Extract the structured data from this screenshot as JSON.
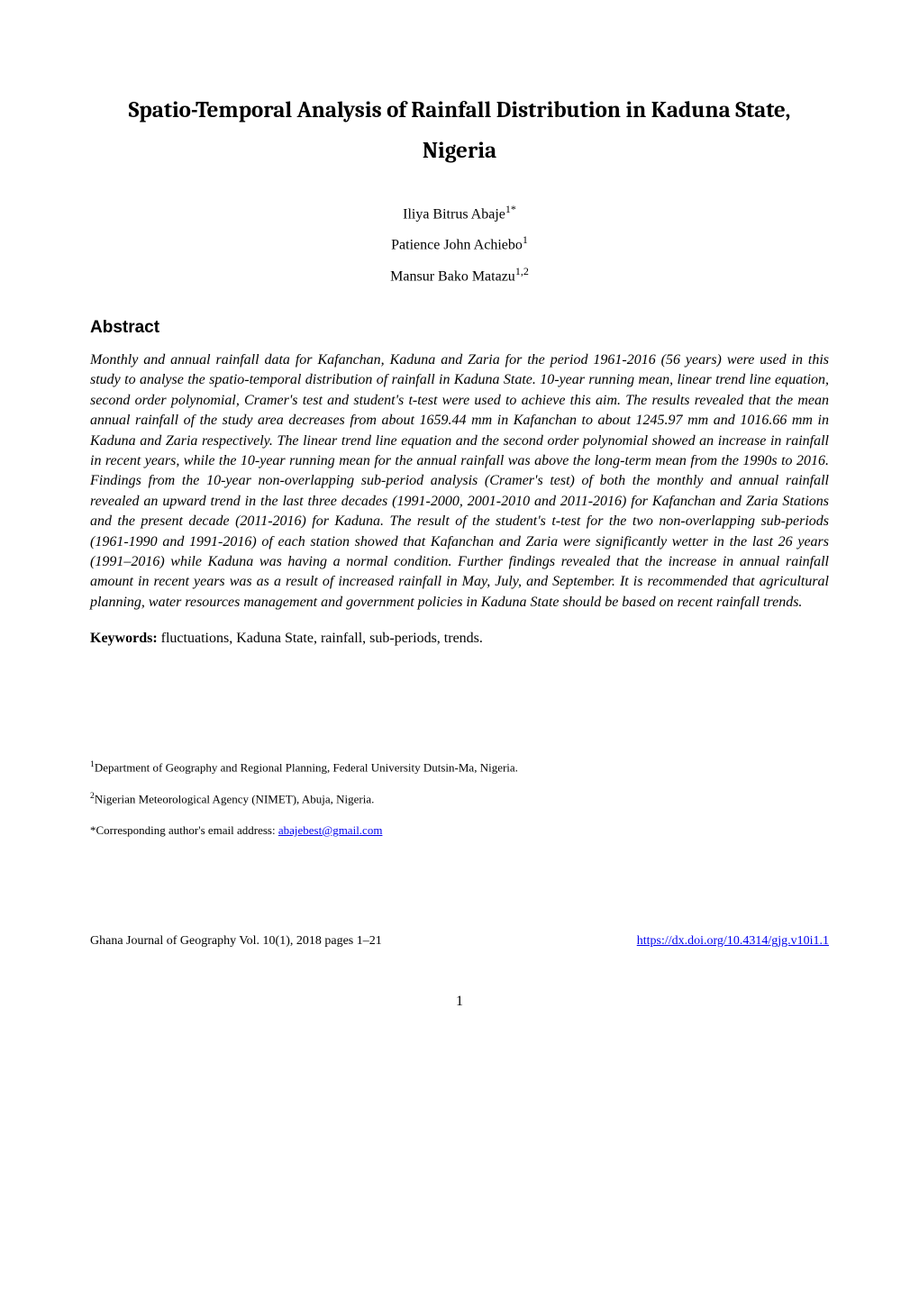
{
  "title": "Spatio-Temporal Analysis of Rainfall Distribution in Kaduna State, Nigeria",
  "authors": [
    {
      "name": "Iliya Bitrus Abaje",
      "sup": "1*"
    },
    {
      "name": "Patience John Achiebo",
      "sup": "1"
    },
    {
      "name": "Mansur Bako Matazu",
      "sup": "1,2"
    }
  ],
  "abstract_heading": "Abstract",
  "abstract_body": "Monthly and annual rainfall data for Kafanchan, Kaduna and Zaria for the period 1961-2016 (56 years) were used in this study to analyse the spatio-temporal distribution of rainfall in Kaduna State. 10-year running mean, linear trend line equation, second order polynomial, Cramer's test and student's t-test were used to achieve this aim. The results revealed that the mean annual rainfall of the study area decreases from about 1659.44 mm in Kafanchan to about 1245.97 mm and 1016.66 mm in Kaduna and Zaria respectively. The linear trend line equation and the second order polynomial showed an increase in rainfall in recent years, while the 10-year running mean for the annual rainfall was above the long-term mean from the 1990s to 2016. Findings from the 10-year non-overlapping sub-period analysis (Cramer's test) of both the monthly and annual rainfall revealed an upward trend in the last three decades (1991-2000, 2001-2010 and 2011-2016) for Kafanchan and Zaria Stations and the present decade (2011-2016) for Kaduna. The result of the student's t-test for the two non-overlapping sub-periods (1961-1990 and 1991-2016) of each station showed that Kafanchan and Zaria were significantly wetter in the last 26 years (1991–2016) while Kaduna was having a normal condition. Further findings revealed that the increase in annual rainfall amount in recent years was as a result of increased rainfall in May, July, and September. It is recommended that agricultural planning, water resources management and government policies in Kaduna State should be based on recent rainfall trends.",
  "keywords_label": "Keywords:",
  "keywords_text": " fluctuations, Kaduna State, rainfall, sub-periods, trends.",
  "affiliations": [
    {
      "sup": "1",
      "text": "Department of Geography and Regional Planning, Federal University Dutsin-Ma, Nigeria."
    },
    {
      "sup": "2",
      "text": "Nigerian Meteorological Agency (NIMET), Abuja, Nigeria."
    }
  ],
  "corresponding_prefix": " *Corresponding author's email address: ",
  "corresponding_email": "abajebest@gmail.com",
  "footer_journal": "Ghana Journal of Geography Vol. 10(1), 2018 pages 1–21",
  "footer_doi": "https://dx.doi.org/10.4314/gjg.v10i1.1",
  "page_number": "1"
}
